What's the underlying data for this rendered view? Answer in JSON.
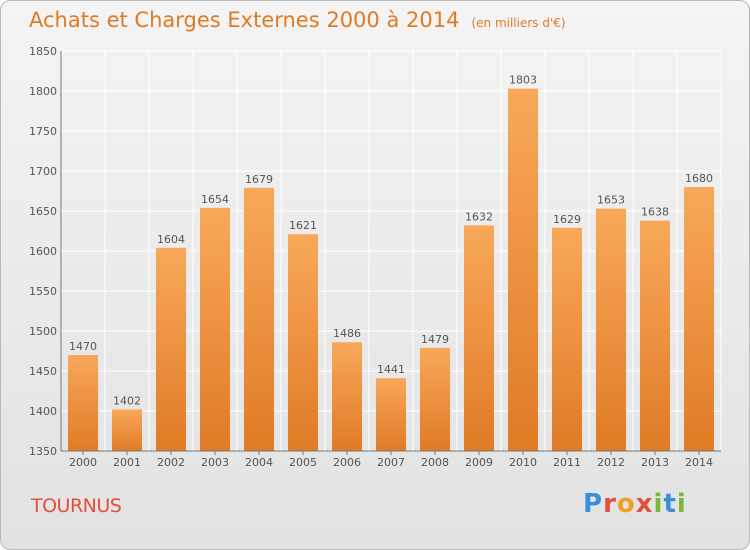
{
  "title": "Achats et Charges Externes 2000 à 2014",
  "subtitle": "(en milliers d'€)",
  "location": "TOURNUS",
  "logo": {
    "letters": [
      "P",
      "r",
      "o",
      "x",
      "i",
      "t",
      "i"
    ],
    "colors": [
      "#3a8fd9",
      "#e0503a",
      "#f0a020",
      "#e0503a",
      "#7ab83a",
      "#3a8fd9",
      "#7ab83a"
    ]
  },
  "colors": {
    "bar_top": "#f8a85a",
    "bar_bottom": "#e07b25",
    "text": "#555555",
    "grid": "#ffffff"
  },
  "chart_data": {
    "type": "bar",
    "categories": [
      "2000",
      "2001",
      "2002",
      "2003",
      "2004",
      "2005",
      "2006",
      "2007",
      "2008",
      "2009",
      "2010",
      "2011",
      "2012",
      "2013",
      "2014"
    ],
    "values": [
      1470,
      1402,
      1604,
      1654,
      1679,
      1621,
      1486,
      1441,
      1479,
      1632,
      1803,
      1629,
      1653,
      1638,
      1680
    ],
    "ylim": [
      1350,
      1850
    ],
    "yticks": [
      1350,
      1400,
      1450,
      1500,
      1550,
      1600,
      1650,
      1700,
      1750,
      1800,
      1850
    ],
    "grid": true,
    "title": "Achats et Charges Externes 2000 à 2014",
    "xlabel": "",
    "ylabel": ""
  }
}
